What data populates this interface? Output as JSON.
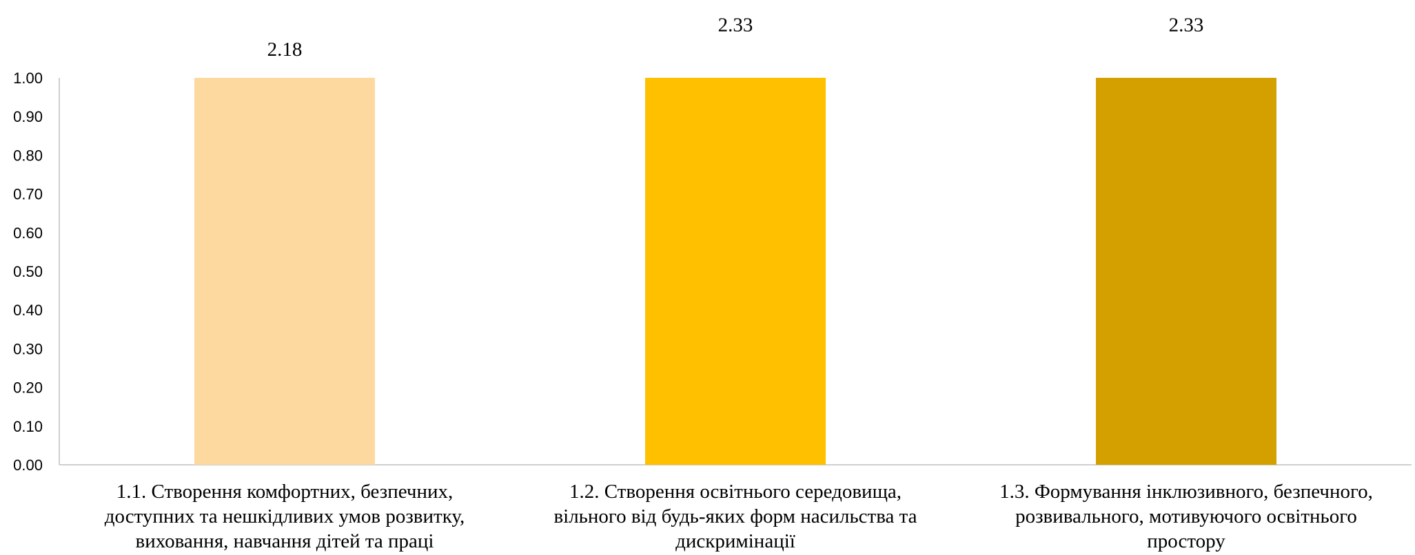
{
  "chart_data": {
    "type": "bar",
    "categories": [
      [
        "1.1. Створення комфортних, безпечних,",
        "доступних та нешкідливих умов розвитку,",
        "виховання, навчання дітей та праці"
      ],
      [
        "1.2. Створення освітнього середовища,",
        "вільного від будь-яких форм насильства та",
        "дискримінації"
      ],
      [
        "1.3. Формування інклюзивного, безпечного,",
        "розвивального, мотивуючого освітнього",
        "простору"
      ]
    ],
    "values": [
      2.18,
      2.33,
      2.33
    ],
    "data_labels": [
      "2.18",
      "2.33",
      "2.33"
    ],
    "colors": [
      "#FDD9A0",
      "#FFC000",
      "#D4A000"
    ],
    "ylim": [
      0,
      1.0
    ],
    "yticks": [
      "0.00",
      "0.10",
      "0.20",
      "0.30",
      "0.40",
      "0.50",
      "0.60",
      "0.70",
      "0.80",
      "0.90",
      "1.00"
    ],
    "grid": false,
    "legend": "none",
    "title": "",
    "xlabel": "",
    "ylabel": ""
  }
}
